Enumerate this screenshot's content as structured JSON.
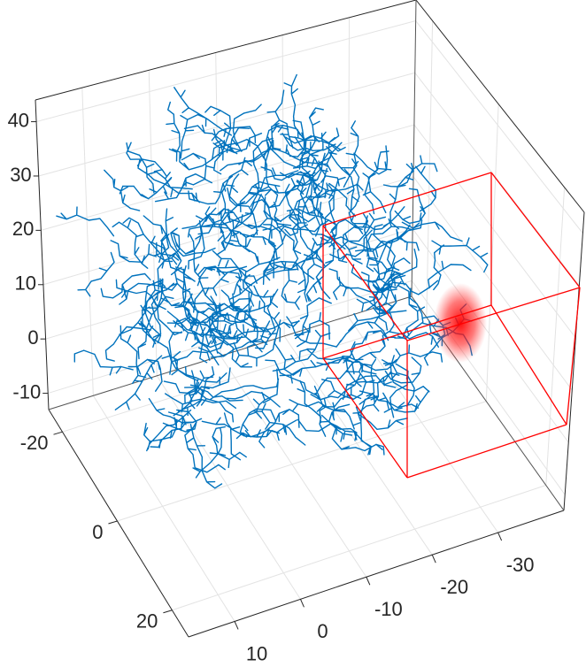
{
  "chart_data": {
    "type": "scatter3d",
    "xlim": [
      -40,
      17
    ],
    "xticks": [
      10,
      0,
      -10,
      -20,
      -30
    ],
    "ylim": [
      -25,
      26
    ],
    "yticks": [
      -20,
      0,
      20
    ],
    "zlim": [
      -13,
      44
    ],
    "zticks": [
      -10,
      0,
      10,
      20,
      30,
      40
    ],
    "grid": true,
    "color": "#0072bd",
    "box_color": "#ff0000"
  }
}
